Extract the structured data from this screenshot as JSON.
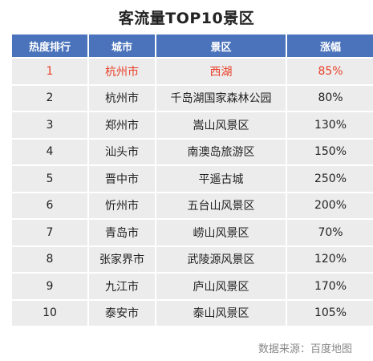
{
  "title": "客流量TOP10景区",
  "columns": [
    "热度排行",
    "城市",
    "景区",
    "涨幅"
  ],
  "rows": [
    {
      "rank": "1",
      "city": "杭州市",
      "spot": "西湖",
      "growth": "85%"
    },
    {
      "rank": "2",
      "city": "杭州市",
      "spot": "千岛湖国家森林公园",
      "growth": "80%"
    },
    {
      "rank": "3",
      "city": "郑州市",
      "spot": "嵩山风景区",
      "growth": "130%"
    },
    {
      "rank": "4",
      "city": "汕头市",
      "spot": "南澳岛旅游区",
      "growth": "150%"
    },
    {
      "rank": "5",
      "city": "晋中市",
      "spot": "平遥古城",
      "growth": "250%"
    },
    {
      "rank": "6",
      "city": "忻州市",
      "spot": "五台山风景区",
      "growth": "200%"
    },
    {
      "rank": "7",
      "city": "青岛市",
      "spot": "崂山风景区",
      "growth": "70%"
    },
    {
      "rank": "8",
      "city": "张家界市",
      "spot": "武陵源风景区",
      "growth": "120%"
    },
    {
      "rank": "9",
      "city": "九江市",
      "spot": "庐山风景区",
      "growth": "170%"
    },
    {
      "rank": "10",
      "city": "泰安市",
      "spot": "泰山风景区",
      "growth": "105%"
    }
  ],
  "footer": "数据来源：百度地图",
  "colors": {
    "header_bg": "#4a73bb",
    "cell_bg": "#ececec",
    "highlight_text": "#e8402a"
  }
}
